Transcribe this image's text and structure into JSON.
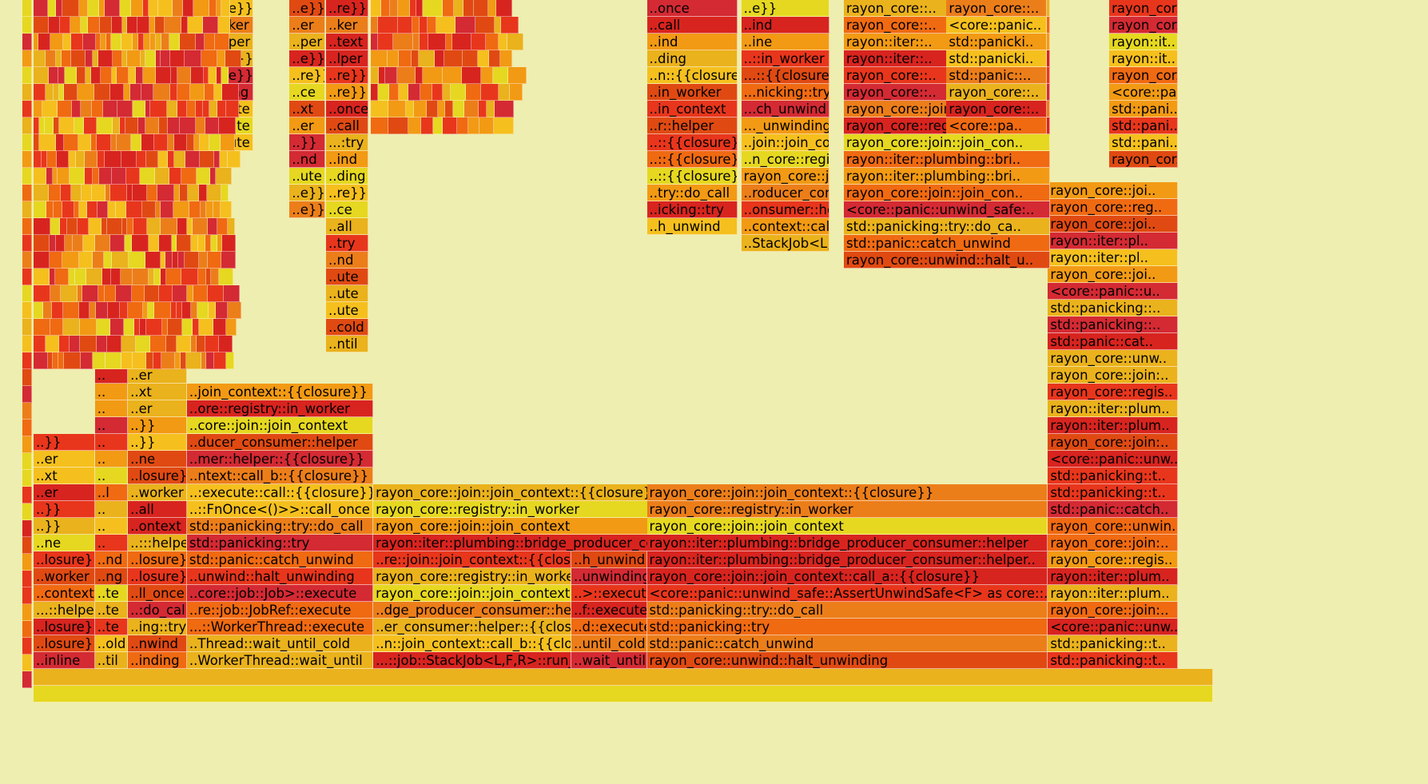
{
  "chart_data": {
    "type": "flame graph",
    "palette": [
      "#d8241f",
      "#e8361c",
      "#f06a12",
      "#f29a14",
      "#eab21c",
      "#e6d820",
      "#e04a12",
      "#d42a33",
      "#ec7e1a",
      "#f5c01e"
    ],
    "depth_rows": 41,
    "columns": [
      {
        "start": 0.0,
        "end": 0.13,
        "labels": [
          "rayon_core::registry::in_worker",
          "rayon_core::join::join_context::{{closure}}",
          "..ckJob<L,F,R>::run_inline",
          "..ntext::call_b::{{closure}}",
          "..mer::helper::{{closure}}",
          "..ucer_consumer::helper",
          "..core::join::join_context",
          "..ore::registry::in_worker",
          "..:join_context::{{closure}}"
        ]
      },
      {
        "start": 0.0,
        "end": 0.052,
        "labels": [
          "..inline",
          "..losure}}",
          "..losure}}",
          "...::helper",
          "..context",
          "..worker",
          "..losure}}",
          "..ne",
          "..}}",
          "..}}",
          "..er",
          "..xt",
          "..er",
          "..}}"
        ]
      },
      {
        "start": 0.052,
        "end": 0.08,
        "labels": [
          "..til",
          "..old",
          "..te",
          "..te",
          "..te",
          "..ng",
          "..nd",
          "..",
          "..",
          "..",
          "..l",
          "..",
          "..",
          "..",
          "..",
          "..",
          "..",
          "..",
          "..",
          "..",
          "..",
          ".."
        ]
      },
      {
        "start": 0.08,
        "end": 0.13,
        "labels": [
          "..inding",
          "..nwind",
          "..ing::try",
          "..:do_call",
          "..ll_once",
          "..losure}}",
          "..losure}}",
          "..:::helper",
          "..ontext",
          "..all",
          "..worker",
          "..losure}}",
          "..ne",
          "..}}",
          "..}}",
          "..er",
          "..xt",
          "..er",
          "..}}"
        ]
      },
      {
        "start": 0.13,
        "end": 0.288,
        "labels": [
          "..WorkerThread::wait_until",
          "..Thread::wait_until_cold",
          "...::WorkerThread::execute",
          "..re::job::JobRef::execute",
          "..core::job::Job>::execute",
          "..unwind::halt_unwinding",
          "std::panic::catch_unwind",
          "std::panicking::try",
          "std::panicking::try::do_call",
          "..::FnOnce<()>>::call_once",
          "..:execute::call::{{closure}}",
          "..ntext::call_b::{{closure}}",
          "..mer::helper::{{closure}}",
          "..ducer_consumer::helper",
          "..core::join::join_context",
          "..ore::registry::in_worker",
          "..join_context::{{closure}}"
        ]
      },
      {
        "start": 0.288,
        "end": 0.86,
        "labels": [
          "rayon_core::unwind::halt_unwinding",
          "std::panic::catch_unwind",
          "std::panicking::try",
          "std::panicking::try::do_call",
          "<core::panic::unwind_safe::AssertUnwindSafe<F> as core::ops::function::FnOnce<()>>::call_once",
          "rayon_core::join::join_context::call_a::{{closure}}",
          "rayon::iter::plumbing::bridge_producer_consumer::helper::{{closure}}",
          "rayon::iter::plumbing::bridge_producer_consumer::helper",
          "rayon_core::join::join_context",
          "rayon_core::registry::in_worker",
          "rayon_core::join::join_context::{{closure}}"
        ]
      },
      {
        "start": 0.288,
        "end": 0.456,
        "labels": [
          "...::job::StackJob<L,F,R>::run_inline",
          "..n::join_context::call_b::{{closure}}",
          "..er_consumer::helper::{{closure}}",
          "..dge_producer_consumer::helper",
          "rayon_core::join::join_context",
          "rayon_core::registry::in_worker",
          "..re::join::join_context::{{closure}}"
        ]
      },
      {
        "start": 0.456,
        "end": 0.52,
        "labels": [
          "..wait_until",
          "..until_cold",
          "..d::execute",
          "..f::execute",
          "..>::execute",
          "..unwinding",
          "..h_unwind"
        ]
      },
      {
        "start": 0.52,
        "end": 0.86,
        "labels": [
          "rayon_core::unwind::halt_unwinding",
          "std::panic::catch_unwind",
          "std::panicking::try",
          "std::panicking::try::do_call",
          "<core::panic::unwind_safe::AssertUnwindSafe<F> as core::..",
          "rayon_core::join::join_context::call_a::{{closure}}",
          "rayon::iter::plumbing::bridge_producer_consumer::helper..",
          "rayon::iter::plumbing::bridge_producer_consumer::helper",
          "rayon_core::join::join_context",
          "rayon_core::registry::in_worker",
          "rayon_core::join::join_context::{{closure}}"
        ]
      },
      {
        "start": 0.86,
        "end": 0.97,
        "labels": [
          "std::panicking::t..",
          "std::panicking::t..",
          "<core::panic::unw..",
          "rayon_core::join:..",
          "rayon::iter::plum..",
          "rayon::iter::plum..",
          "rayon_core::regis..",
          "rayon_core::join:..",
          "rayon_core::unwin..",
          "std::panic::catch..",
          "std::panicking::t..",
          "std::panicking::t..",
          "<core::panic::unw..",
          "rayon_core::join:..",
          "rayon::iter::plum..",
          "rayon::iter::plum..",
          "rayon_core::regis..",
          "rayon_core::join:..",
          "rayon_core::unw..",
          "std::panic::cat..",
          "std::panicking::..",
          "std::panicking::..",
          "<core::panic::u..",
          "rayon_core::joi..",
          "rayon::iter::pl..",
          "rayon::iter::pl..",
          "rayon_core::joi..",
          "rayon_core::reg..",
          "rayon_core::joi.."
        ]
      }
    ],
    "upper_cells": [
      {
        "col": 0.248,
        "w": 0.036,
        "labels": [
          "..re}}",
          "..ker",
          "..text",
          "..lper",
          "..re}}",
          "..re}}",
          "..once",
          "..call",
          "...:try",
          "..ind",
          "..ding",
          "..re}}",
          "..ce",
          "..all",
          "..try",
          "..nd",
          "..ute",
          "..ute",
          "..ute",
          "..cold",
          "..ntil"
        ]
      },
      {
        "col": 0.156,
        "w": 0.03,
        "labels": [
          "..e}}",
          "..ker",
          "..per",
          "..e}}",
          "..e}}",
          "..ing",
          "..ute",
          "..ute",
          "..ute"
        ]
      },
      {
        "col": 0.217,
        "w": 0.03,
        "labels": [
          "..e}}",
          "..er",
          "..per",
          "..e}}",
          "..re}}",
          "..ce",
          "..xt",
          "..er",
          "..}}",
          "..nd",
          "..ute",
          "..e}}",
          "..e}}"
        ]
      },
      {
        "col": 0.52,
        "w": 0.077,
        "labels": [
          "..once",
          "..call",
          "..ind",
          "..ding",
          "..n::{{closure}}",
          "..in_worker",
          "..in_context",
          "..r::helper",
          "..::{{closure}}",
          "..::{{closure}}",
          "..::{{closure}}",
          "..try::do_call",
          "..icking::try",
          "..h_unwind"
        ]
      },
      {
        "col": 0.6,
        "w": 0.075,
        "labels": [
          "..e}}",
          "..ind",
          "..ine",
          "..::in_worker",
          "...::{{closure}}",
          "...nicking::try",
          "...ch_unwind",
          "..._unwinding",
          "..join::join_context::{{closure}}",
          "..n_core::registry::in_worker",
          "rayon_core::join::join_context",
          "..roducer_consumer::helper",
          "..onsumer::helper::{{closure}}",
          "..context::call_b::{{closure}}",
          "..StackJob<L,F,R>::run_inline"
        ]
      },
      {
        "col": 0.687,
        "w": 0.16,
        "labels": [
          "rayon_cor..",
          "rayon::it..",
          "rayon::iter::plu",
          "...::{{closure}}",
          "..>::call_once",
          "..try::do_call",
          "..nicking::try",
          "..ch_unwind",
          ".._unwinding",
          "..join::join_context::{{closure}}",
          "..n_core::registry::in_worker",
          "rayon_core::join::join_context",
          "..roducer_consumer::helper",
          "..onsumer::helper::{{closure}}",
          "..context::call_b::{{closure}}",
          "..StackJob<L,F,R>::run_inline"
        ]
      },
      {
        "col": 0.687,
        "w": 0.175,
        "labels": [
          "rayon_core::..",
          "rayon_core::..",
          "rayon::iter::..",
          "rayon::iter::..",
          "rayon_core::..",
          "rayon_core::..",
          "rayon_core::join::join_con..",
          "rayon_core::registry::in_w..",
          "rayon_core::join::join_con..",
          "rayon::iter::plumbing::bri..",
          "rayon::iter::plumbing::bri..",
          "rayon_core::join::join_con..",
          "<core::panic::unwind_safe:..",
          "std::panicking::try::do_ca..",
          "std::panic::catch_unwind",
          "rayon_core::unwind::halt_u.."
        ]
      },
      {
        "col": 0.774,
        "w": 0.085,
        "labels": [
          "rayon_core::..",
          "<core::panic..",
          "std::panicki..",
          "std::panicki..",
          "std::panic::..",
          "rayon_core::..",
          "rayon_core::..",
          "<core::pa.."
        ]
      },
      {
        "col": 0.912,
        "w": 0.058,
        "labels": [
          "rayon_cor..",
          "rayon_cor..",
          "rayon::it..",
          "rayon::it..",
          "rayon_cor..",
          "<core::pa..",
          "std::pani..",
          "std::pani..",
          "std::pani..",
          "rayon_cor.."
        ]
      }
    ]
  }
}
